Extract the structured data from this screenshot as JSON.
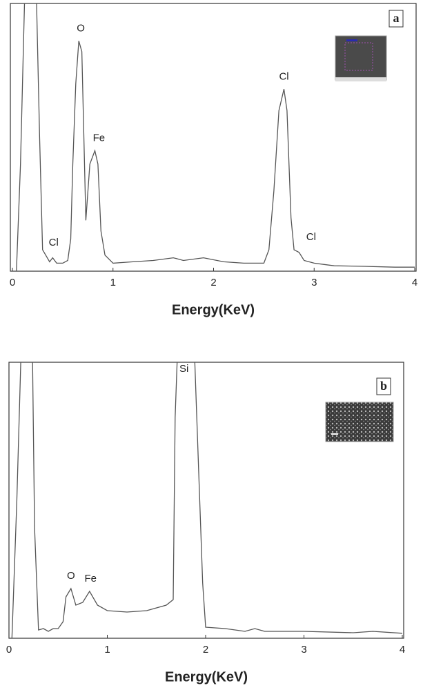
{
  "chart_data": [
    {
      "type": "line",
      "panel_label": "a",
      "xlabel": "Energy(KeV)",
      "color": "#555555",
      "xlim": [
        0,
        4
      ],
      "xticks": [
        0,
        1,
        2,
        3,
        4
      ],
      "ylim": [
        0,
        100
      ],
      "x": [
        0.04,
        0.08,
        0.12,
        0.13,
        0.22,
        0.24,
        0.27,
        0.3,
        0.37,
        0.4,
        0.44,
        0.5,
        0.55,
        0.58,
        0.6,
        0.63,
        0.66,
        0.69,
        0.73,
        0.77,
        0.82,
        0.85,
        0.88,
        0.92,
        1.0,
        1.2,
        1.4,
        1.6,
        1.7,
        1.9,
        2.1,
        2.3,
        2.5,
        2.55,
        2.6,
        2.65,
        2.7,
        2.73,
        2.77,
        2.8,
        2.85,
        2.9,
        3.0,
        3.1,
        3.2,
        3.5,
        3.8,
        4.0
      ],
      "values": [
        0,
        40,
        100,
        110,
        110,
        100,
        50,
        8,
        3.5,
        5,
        3,
        3,
        4,
        12,
        40,
        70,
        86,
        82,
        19,
        40,
        45,
        40,
        15,
        6,
        3,
        3.5,
        4,
        5,
        4,
        5,
        3.5,
        3,
        3,
        8,
        30,
        60,
        68,
        60,
        20,
        8,
        7,
        4,
        3,
        2.5,
        2,
        1.8,
        1.5,
        1.5
      ],
      "annotations": [
        {
          "text": "Cl",
          "x": 0.41,
          "y": 8
        },
        {
          "text": "O",
          "x": 0.68,
          "y": 88
        },
        {
          "text": "Fe",
          "x": 0.86,
          "y": 47
        },
        {
          "text": "Cl",
          "x": 2.7,
          "y": 70
        },
        {
          "text": "Cl",
          "x": 2.97,
          "y": 10
        }
      ]
    },
    {
      "type": "line",
      "panel_label": "b",
      "xlabel": "Energy(KeV)",
      "color": "#555555",
      "xlim": [
        0,
        4
      ],
      "xticks": [
        0,
        1,
        2,
        3,
        4
      ],
      "ylim": [
        0,
        100
      ],
      "x": [
        0.03,
        0.08,
        0.12,
        0.13,
        0.22,
        0.24,
        0.26,
        0.3,
        0.35,
        0.4,
        0.45,
        0.5,
        0.55,
        0.58,
        0.63,
        0.68,
        0.75,
        0.82,
        0.9,
        1.0,
        1.2,
        1.4,
        1.6,
        1.67,
        1.69,
        1.72,
        1.88,
        1.93,
        1.97,
        2.0,
        2.2,
        2.4,
        2.5,
        2.6,
        3.0,
        3.5,
        3.7,
        4.0
      ],
      "values": [
        0,
        50,
        100,
        110,
        110,
        100,
        40,
        3,
        3.5,
        2.5,
        3.5,
        3.5,
        6,
        15,
        18,
        12,
        13,
        17,
        12,
        10,
        9.5,
        10,
        12,
        14,
        80,
        110,
        110,
        60,
        20,
        4,
        3.5,
        2.5,
        3.5,
        2.5,
        2.5,
        2,
        2.5,
        1.8
      ],
      "annotations": [
        {
          "text": "Si",
          "x": 1.78,
          "y": 95
        },
        {
          "text": "O",
          "x": 0.63,
          "y": 20
        },
        {
          "text": "Fe",
          "x": 0.83,
          "y": 19
        }
      ]
    }
  ]
}
